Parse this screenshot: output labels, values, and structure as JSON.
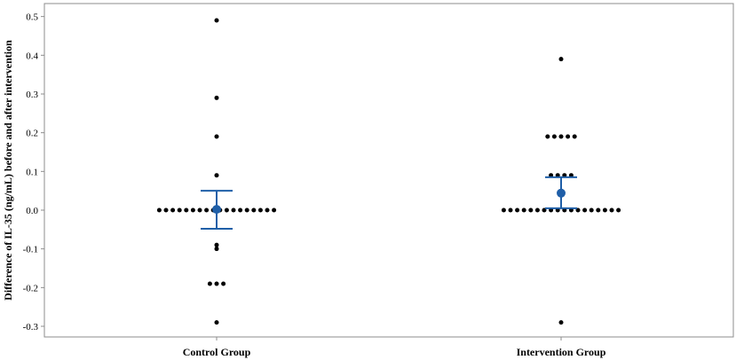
{
  "chart_data": {
    "type": "scatter",
    "subtype": "dot-plot with mean and error bars",
    "title": "",
    "xlabel": "",
    "ylabel": "Difference of IL-35 (ng/mL) before and after intervention",
    "ylim": [
      -0.33,
      0.53
    ],
    "yticks": [
      -0.3,
      -0.2,
      -0.1,
      0.0,
      0.1,
      0.2,
      0.3,
      0.4,
      0.5
    ],
    "ytick_labels": [
      "-0.3",
      "-0.2",
      "-0.1",
      "0.0",
      "0.1",
      "0.2",
      "0.3",
      "0.4",
      "0.5"
    ],
    "grid": false,
    "categories": [
      "Control Group",
      "Intervention Group"
    ],
    "groups": [
      {
        "name": "Control Group",
        "dots": [
          {
            "y": 0.49,
            "count": 1
          },
          {
            "y": 0.29,
            "count": 1
          },
          {
            "y": 0.19,
            "count": 1
          },
          {
            "y": 0.09,
            "count": 1
          },
          {
            "y": 0.0,
            "count": 18
          },
          {
            "y": -0.09,
            "count": 1
          },
          {
            "y": -0.1,
            "count": 1
          },
          {
            "y": -0.19,
            "count": 3
          },
          {
            "y": -0.29,
            "count": 1
          }
        ],
        "mean": 0.002,
        "error_low": -0.048,
        "error_high": 0.05
      },
      {
        "name": "Intervention Group",
        "dots": [
          {
            "y": 0.39,
            "count": 1
          },
          {
            "y": 0.19,
            "count": 5
          },
          {
            "y": 0.09,
            "count": 4
          },
          {
            "y": 0.0,
            "count": 18
          },
          {
            "y": -0.29,
            "count": 1
          }
        ],
        "mean": 0.044,
        "error_low": 0.005,
        "error_high": 0.085
      }
    ],
    "colors": {
      "dots": "#000000",
      "mean": "#1f5fa8",
      "error_bar": "#1f5fa8",
      "frame": "#8c8c8c"
    }
  }
}
